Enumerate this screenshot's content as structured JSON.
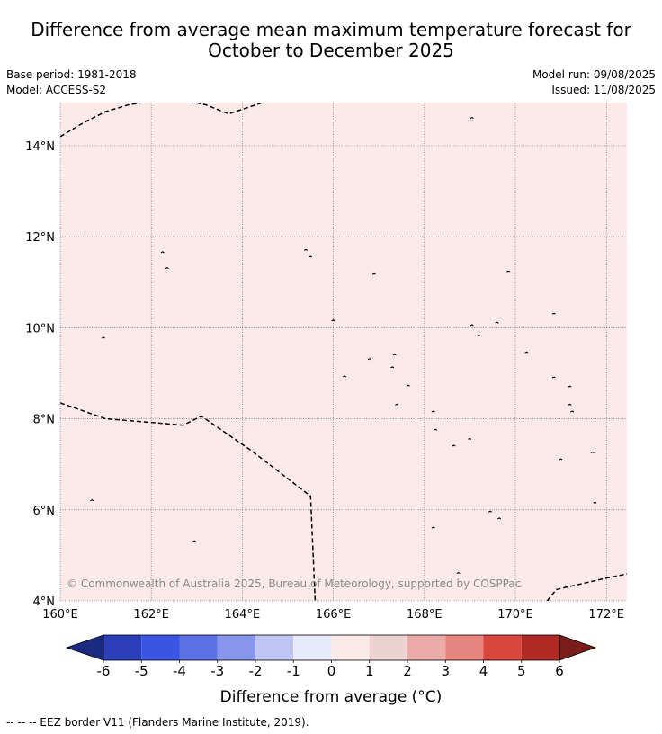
{
  "title": {
    "line1": "Difference from average mean maximum temperature forecast for",
    "line2": "October to December 2025"
  },
  "meta": {
    "base_period": "Base period: 1981-2018",
    "model": "Model: ACCESS-S2",
    "model_run": "Model run: 09/08/2025",
    "issued": "Issued: 11/08/2025"
  },
  "map": {
    "fill_color": "#fbeae8",
    "lon_ticks": [
      "160°E",
      "162°E",
      "164°E",
      "166°E",
      "168°E",
      "170°E",
      "172°E"
    ],
    "lat_ticks": [
      "4°N",
      "6°N",
      "8°N",
      "10°N",
      "12°N",
      "14°N"
    ],
    "lon_range": [
      160,
      172.5
    ],
    "lat_range": [
      4,
      14.9
    ],
    "copyright": "© Commonwealth of Australia 2025, Bureau of Meteorology, supported by COSPPac",
    "eez_borders": [
      [
        [
          160,
          14.2
        ],
        [
          160.5,
          14.5
        ],
        [
          161,
          14.75
        ],
        [
          161.5,
          14.9
        ],
        [
          162,
          14.98
        ],
        [
          162.7,
          15.0
        ],
        [
          163.2,
          14.9
        ],
        [
          163.7,
          14.7
        ],
        [
          164,
          14.8
        ],
        [
          164.6,
          15.0
        ]
      ],
      [
        [
          160,
          8.35
        ],
        [
          161,
          8.0
        ],
        [
          162,
          7.92
        ],
        [
          162.7,
          7.86
        ],
        [
          163.1,
          8.06
        ],
        [
          164.2,
          7.3
        ],
        [
          165.5,
          6.3
        ],
        [
          165.6,
          4.0
        ]
      ],
      [
        [
          170.7,
          4.0
        ],
        [
          170.9,
          4.25
        ],
        [
          172.0,
          4.5
        ],
        [
          172.5,
          4.6
        ]
      ]
    ],
    "islands": [
      [
        160.95,
        9.77
      ],
      [
        162.25,
        11.65
      ],
      [
        162.35,
        11.3
      ],
      [
        165.4,
        11.7
      ],
      [
        165.5,
        11.55
      ],
      [
        166.0,
        10.15
      ],
      [
        166.9,
        11.17
      ],
      [
        166.25,
        8.92
      ],
      [
        166.8,
        9.3
      ],
      [
        167.35,
        9.4
      ],
      [
        167.3,
        9.12
      ],
      [
        167.65,
        8.72
      ],
      [
        167.4,
        8.3
      ],
      [
        168.2,
        8.15
      ],
      [
        168.25,
        7.75
      ],
      [
        168.65,
        7.4
      ],
      [
        169.0,
        7.55
      ],
      [
        169.05,
        14.6
      ],
      [
        169.05,
        10.05
      ],
      [
        169.2,
        9.82
      ],
      [
        169.6,
        10.1
      ],
      [
        169.85,
        11.23
      ],
      [
        170.25,
        9.45
      ],
      [
        170.85,
        10.3
      ],
      [
        170.85,
        8.9
      ],
      [
        171.2,
        8.7
      ],
      [
        171.2,
        8.3
      ],
      [
        171.25,
        8.15
      ],
      [
        171.7,
        7.25
      ],
      [
        171.75,
        6.15
      ],
      [
        171.0,
        7.1
      ],
      [
        169.65,
        5.8
      ],
      [
        169.45,
        5.95
      ],
      [
        168.2,
        5.6
      ],
      [
        168.75,
        4.6
      ],
      [
        162.95,
        5.3
      ],
      [
        160.7,
        6.2
      ],
      [
        172.5,
        14.85
      ]
    ]
  },
  "legend": {
    "title": "Difference from average ($^\\circ$C)",
    "title_display": "Difference from average (°C)",
    "tick_labels": [
      "-6",
      "-5",
      "-4",
      "-3",
      "-2",
      "-1",
      "0",
      "1",
      "2",
      "3",
      "4",
      "5",
      "6"
    ],
    "colors": [
      "#1a2a80",
      "#2b3fbb",
      "#3a55e3",
      "#5b72e6",
      "#8796ec",
      "#bfc6f4",
      "#e8ebfc",
      "#fbeae8",
      "#ecd2d0",
      "#ecaaa7",
      "#e68480",
      "#d9463e",
      "#b02a24",
      "#7a1c18"
    ]
  },
  "footnote": "--  --  -- EEZ border V11 (Flanders Marine Institute, 2019)."
}
